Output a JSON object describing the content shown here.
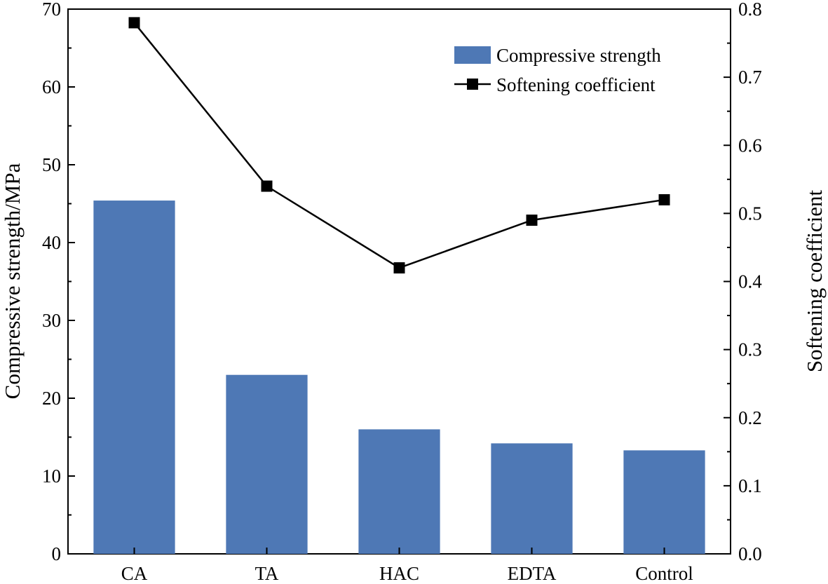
{
  "chart_data": {
    "type": "bar",
    "categories": [
      "CA",
      "TA",
      "HAC",
      "EDTA",
      "Control"
    ],
    "series": [
      {
        "name": "Compressive strength",
        "type": "bar",
        "axis": "left",
        "color": "#4e78b5",
        "values": [
          45.4,
          23.0,
          16.0,
          14.2,
          13.3
        ]
      },
      {
        "name": "Softening coefficient",
        "type": "line",
        "axis": "right",
        "color": "#000000",
        "marker": "square",
        "values": [
          0.78,
          0.54,
          0.42,
          0.49,
          0.52
        ]
      }
    ],
    "ylabel": "Compressive strength/MPa",
    "ylabel_right": "Softening coefficient",
    "ylim": [
      0,
      70
    ],
    "ylim_right": [
      0.0,
      0.8
    ],
    "yticks": [
      "0",
      "10",
      "20",
      "30",
      "40",
      "50",
      "60",
      "70"
    ],
    "yticks_right": [
      "0.0",
      "0.1",
      "0.2",
      "0.3",
      "0.4",
      "0.5",
      "0.6",
      "0.7",
      "0.8"
    ],
    "grid": false,
    "legend": "top-right"
  }
}
